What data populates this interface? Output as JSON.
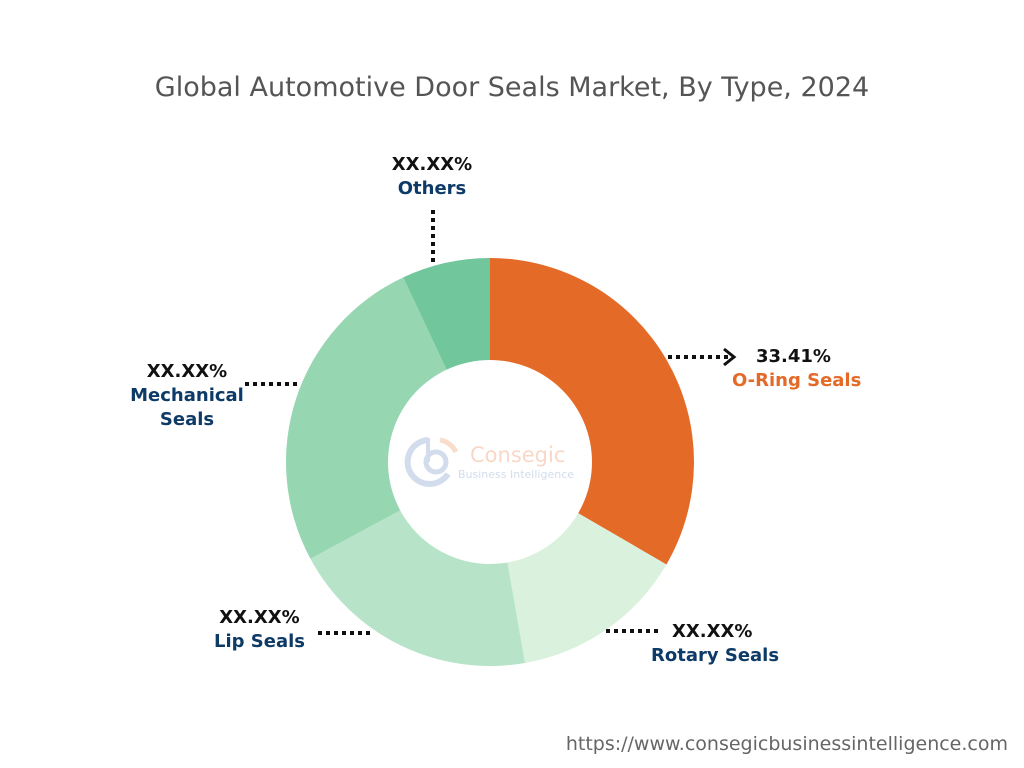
{
  "chart_data": {
    "type": "pie",
    "style": "donut",
    "title": "Global Automotive Door Seals Market, By Type, 2024",
    "slices": [
      {
        "name": "O-Ring Seals",
        "label": "33.41%",
        "value": 33.41,
        "color": "#e36a27",
        "name_color": "#e36a27"
      },
      {
        "name": "Rotary Seals",
        "label": "XX.XX%",
        "value": 13.9,
        "color": "#daf1dd",
        "name_color": "#0d3a66"
      },
      {
        "name": "Lip Seals",
        "label": "XX.XX%",
        "value": 19.9,
        "color": "#b7e4c8",
        "name_color": "#0d3a66"
      },
      {
        "name": "Mechanical Seals",
        "label": "XX.XX%",
        "value": 25.9,
        "color": "#96d6b1",
        "name_color": "#0d3a66"
      },
      {
        "name": "Others",
        "label": "XX.XX%",
        "value": 7.0,
        "color": "#72c69b",
        "name_color": "#0d3a66"
      }
    ],
    "legend": "none"
  },
  "logo": {
    "brand": "Consegic",
    "tagline": "Business Intelligence"
  },
  "source_url": "https://www.consegicbusinessintelligence.com"
}
